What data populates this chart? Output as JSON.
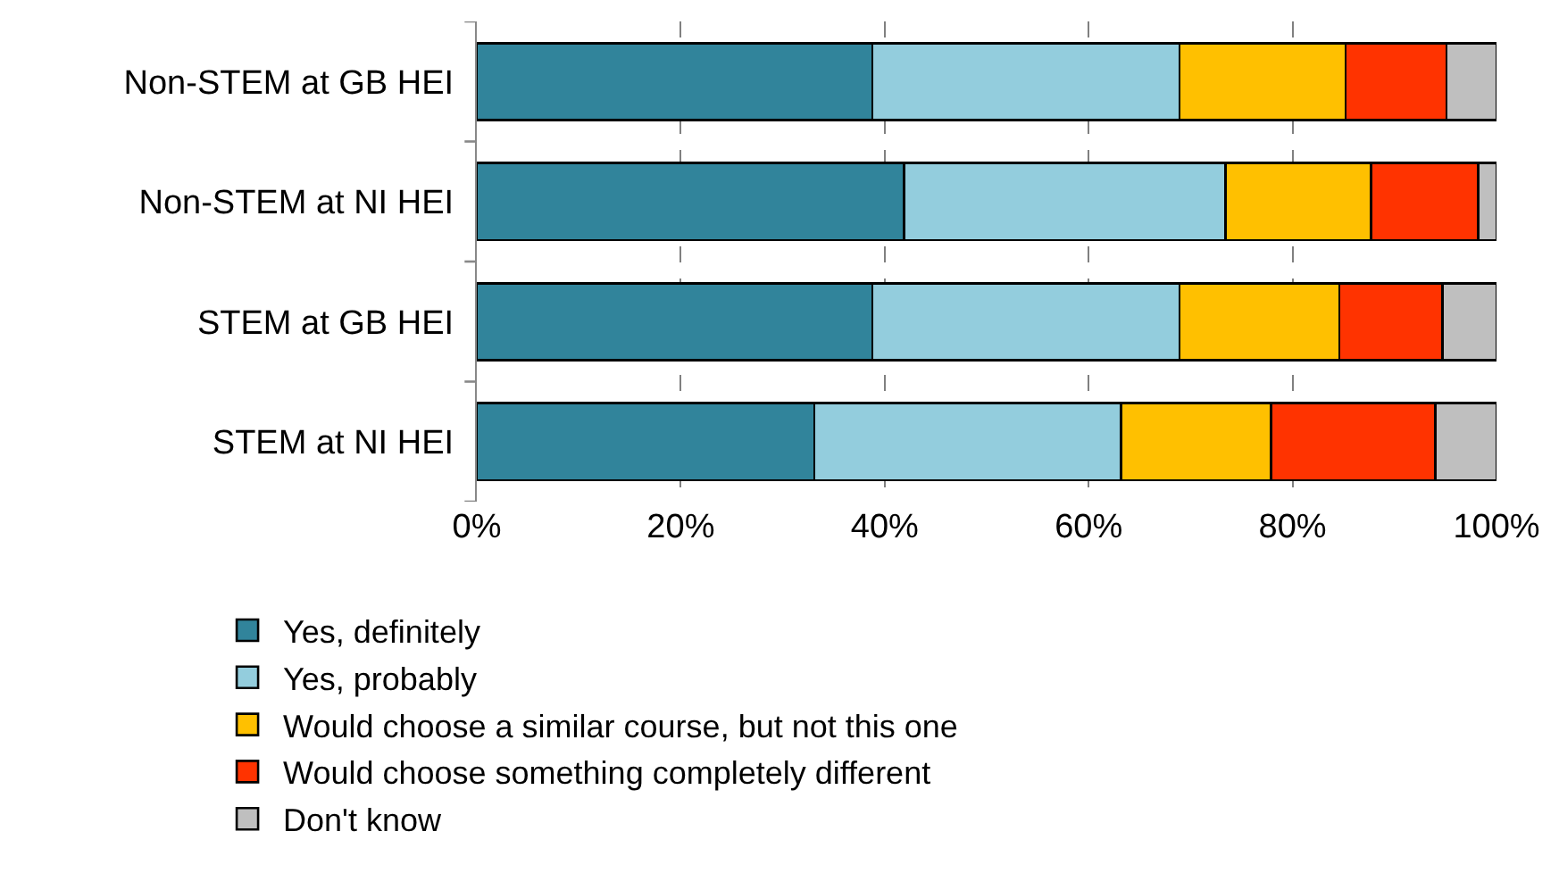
{
  "chart_data": {
    "type": "bar",
    "orientation": "horizontal",
    "stacked": true,
    "categories": [
      "Non-STEM at GB HEI",
      "Non-STEM at NI HEI",
      "STEM at GB HEI",
      "STEM at NI HEI"
    ],
    "series": [
      {
        "name": "Yes, definitely",
        "color": "#31849b",
        "values": [
          38.8,
          41.9,
          38.8,
          33.1
        ]
      },
      {
        "name": "Yes, probably",
        "color": "#93cddd",
        "values": [
          30.1,
          31.5,
          30.1,
          30.1
        ]
      },
      {
        "name": "Would choose a similar course, but not this one",
        "color": "#ffc000",
        "values": [
          16.3,
          14.3,
          15.7,
          14.7
        ]
      },
      {
        "name": "Would choose something completely different",
        "color": "#ff3300",
        "values": [
          9.9,
          10.5,
          10.1,
          16.1
        ]
      },
      {
        "name": "Don't know",
        "color": "#bfbfbf",
        "values": [
          4.9,
          1.8,
          5.3,
          6.0
        ]
      }
    ],
    "xlim": [
      0,
      100
    ],
    "xticks": [
      {
        "value": 0,
        "label": "0%"
      },
      {
        "value": 20,
        "label": "20%"
      },
      {
        "value": 40,
        "label": "40%"
      },
      {
        "value": 60,
        "label": "60%"
      },
      {
        "value": 80,
        "label": "80%"
      },
      {
        "value": 100,
        "label": "100%"
      }
    ],
    "grid": "x",
    "legend": "bottom left"
  }
}
